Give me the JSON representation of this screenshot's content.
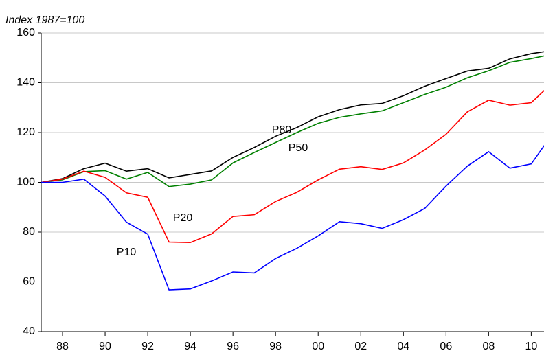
{
  "chart_data": {
    "type": "line",
    "y_label": "Index 1987=100",
    "x": [
      1987,
      1988,
      1989,
      1990,
      1991,
      1992,
      1993,
      1994,
      1995,
      1996,
      1997,
      1998,
      1999,
      2000,
      2001,
      2002,
      2003,
      2004,
      2005,
      2006,
      2007,
      2008,
      2009,
      2010,
      2011
    ],
    "series": [
      {
        "name": "P80",
        "color": "#000000",
        "values": [
          100,
          101.5,
          105.5,
          107.7,
          104.5,
          105.5,
          101.8,
          103.2,
          104.6,
          110,
          114,
          118.5,
          122,
          126.3,
          129.2,
          131.1,
          131.7,
          134.8,
          138.6,
          141.7,
          144.7,
          145.8,
          149.6,
          151.7,
          153
        ]
      },
      {
        "name": "P50",
        "color": "#008000",
        "values": [
          100,
          101,
          104.3,
          104.7,
          101.3,
          104,
          98.3,
          99.3,
          101,
          107.8,
          112,
          116,
          120,
          123.7,
          126.1,
          127.5,
          128.7,
          132,
          135.3,
          138.2,
          142,
          144.8,
          148.2,
          149.7,
          151.5
        ]
      },
      {
        "name": "P20",
        "color": "#ff0000",
        "values": [
          100,
          101.3,
          104.5,
          102,
          95.8,
          94,
          76,
          75.8,
          79.3,
          86.3,
          87,
          92.3,
          96,
          101,
          105.3,
          106.3,
          105.2,
          107.8,
          113,
          119.3,
          128.3,
          133,
          131,
          132,
          140
        ]
      },
      {
        "name": "P10",
        "color": "#0000ff",
        "values": [
          100,
          100,
          101.3,
          94.5,
          84,
          79.2,
          56.8,
          57.2,
          60.4,
          64,
          63.6,
          69.4,
          73.5,
          78.5,
          84.2,
          83.4,
          81.5,
          85,
          89.5,
          98.5,
          106.5,
          112.3,
          105.7,
          107.4,
          119.5
        ]
      }
    ],
    "xlim": [
      1987,
      2010.6
    ],
    "xticks": [
      {
        "value": 1988,
        "label": "88"
      },
      {
        "value": 1990,
        "label": "90"
      },
      {
        "value": 1992,
        "label": "92"
      },
      {
        "value": 1994,
        "label": "94"
      },
      {
        "value": 1996,
        "label": "96"
      },
      {
        "value": 1998,
        "label": "98"
      },
      {
        "value": 2000,
        "label": "00"
      },
      {
        "value": 2002,
        "label": "02"
      },
      {
        "value": 2004,
        "label": "04"
      },
      {
        "value": 2006,
        "label": "06"
      },
      {
        "value": 2008,
        "label": "08"
      },
      {
        "value": 2010,
        "label": "10"
      }
    ],
    "ylim": [
      40,
      160
    ],
    "yticks": [
      40,
      60,
      80,
      100,
      120,
      140,
      160
    ],
    "grid": true
  }
}
